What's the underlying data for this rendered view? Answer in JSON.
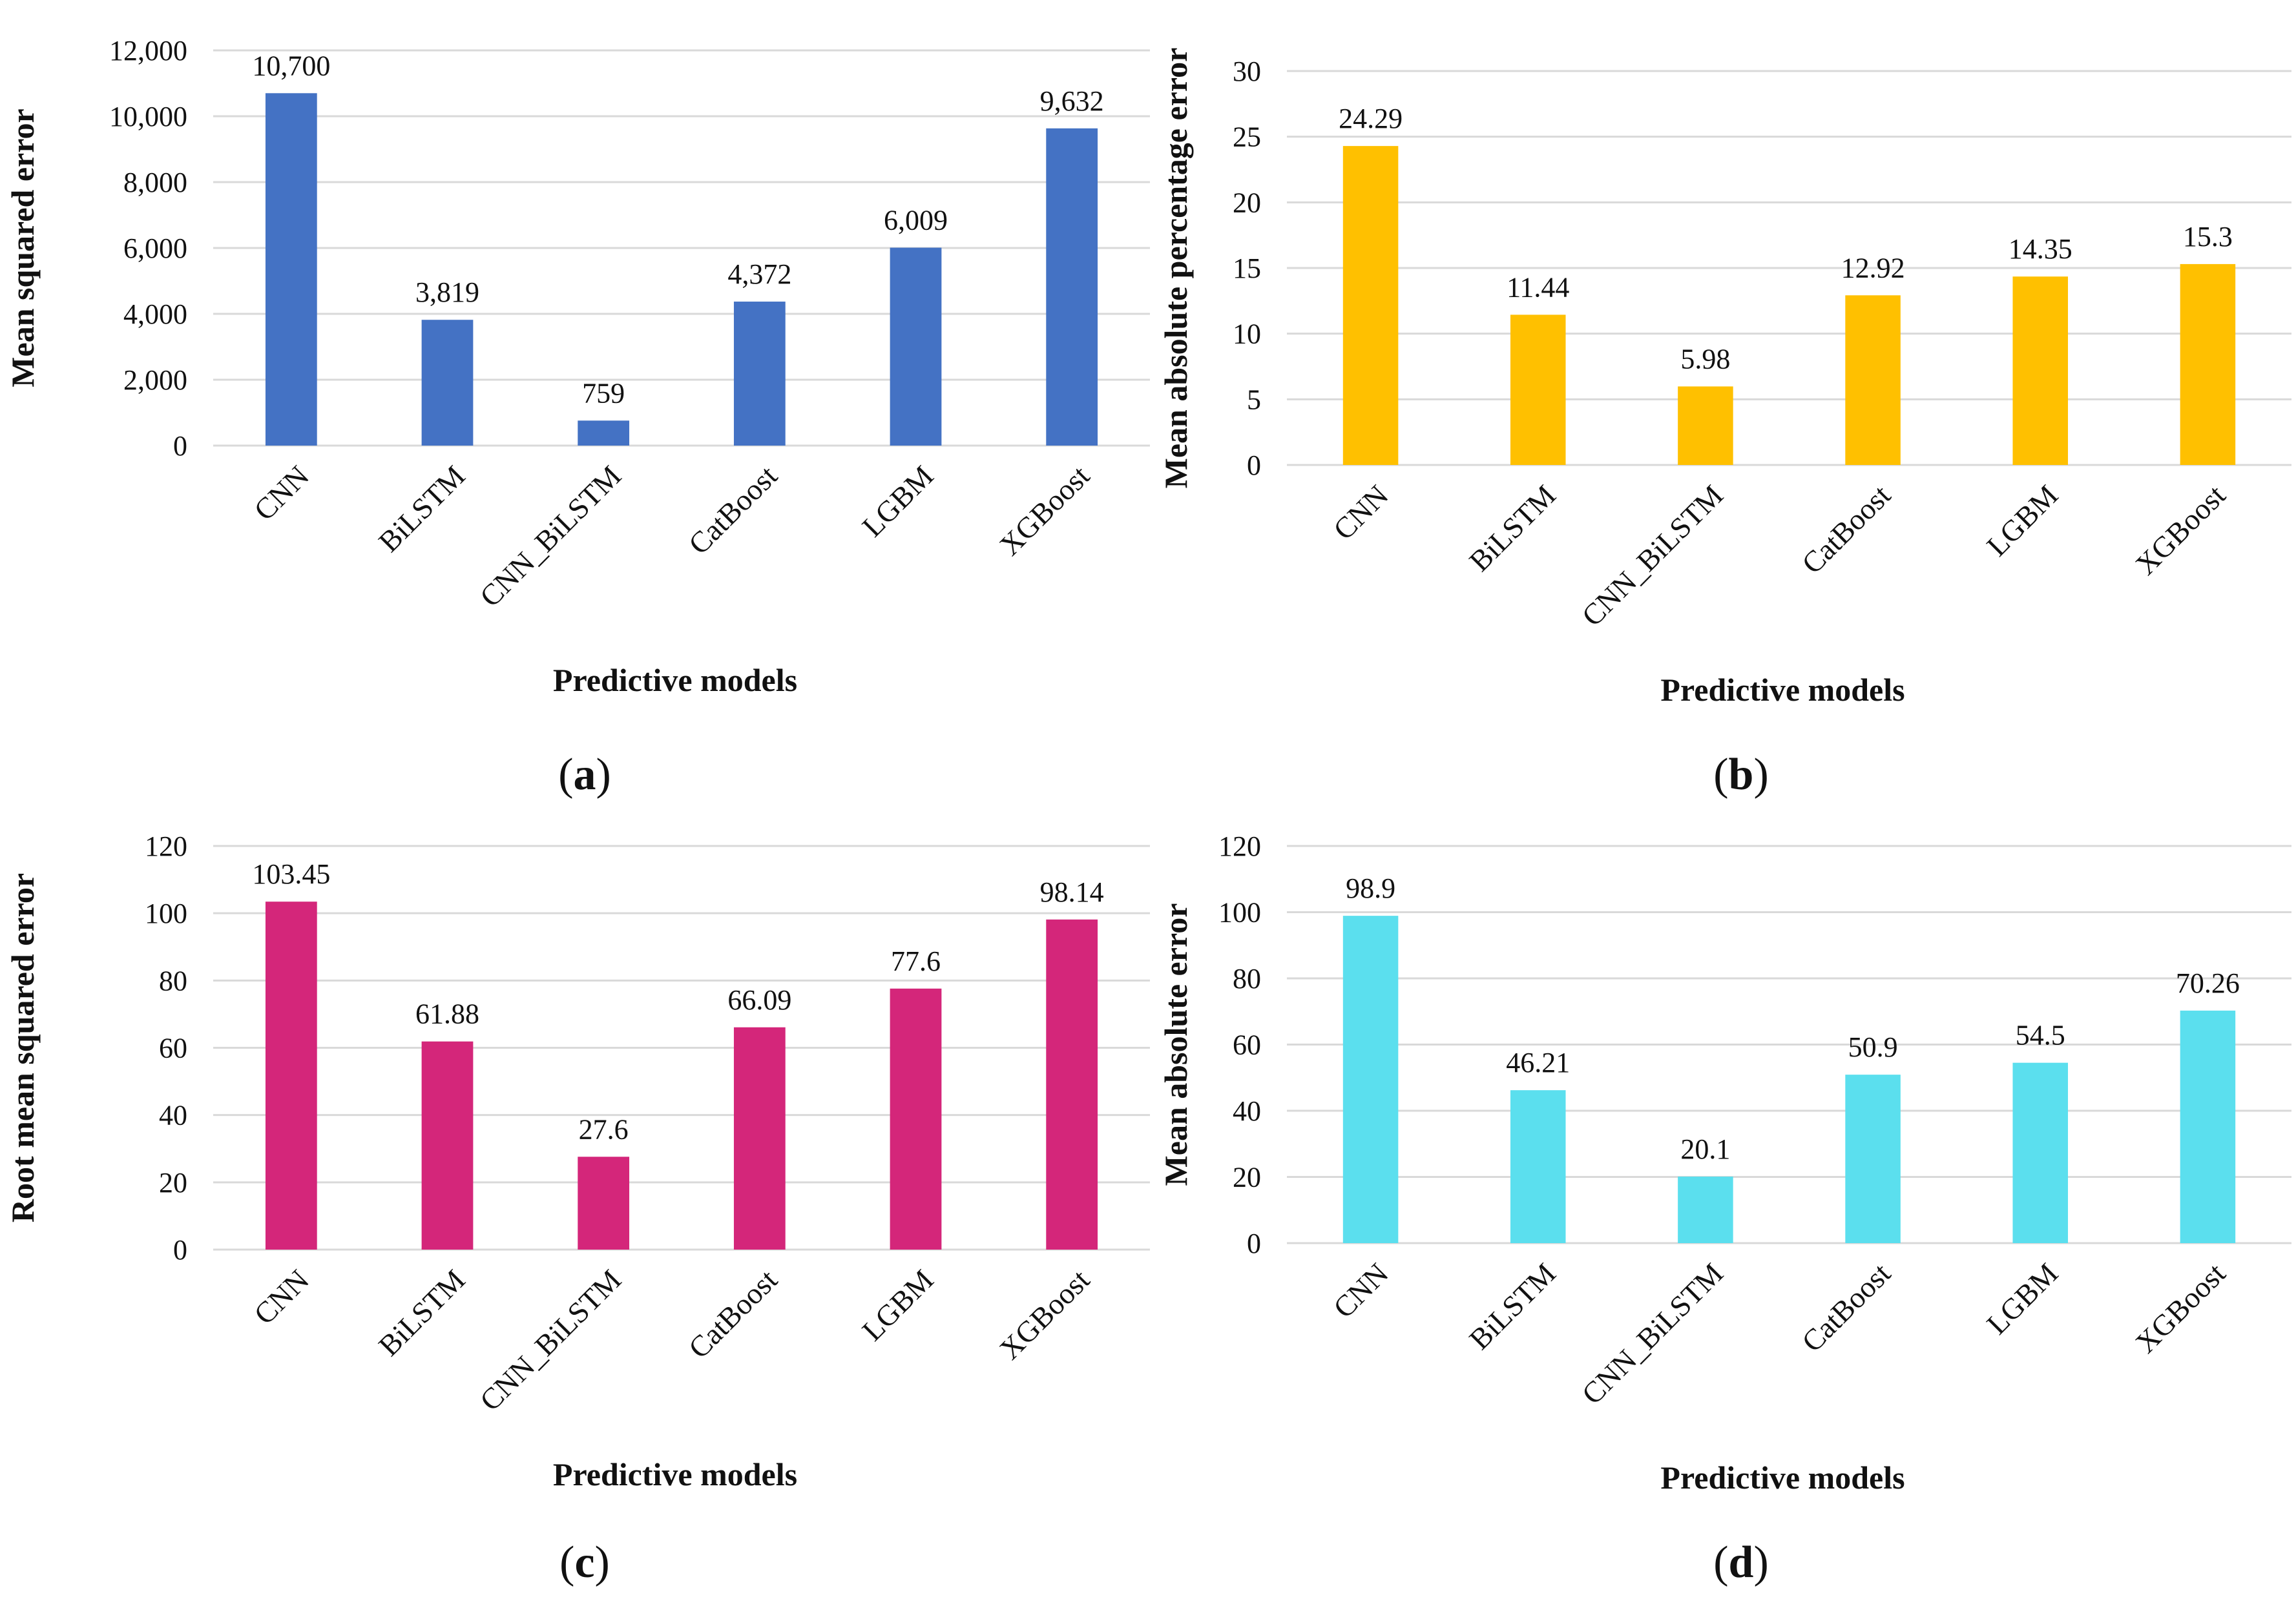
{
  "chart_data": [
    {
      "id": "a",
      "type": "bar",
      "caption_letter": "a",
      "categories": [
        "CNN",
        "BiLSTM",
        "CNN_BiLSTM",
        "CatBoost",
        "LGBM",
        "XGBoost"
      ],
      "values": [
        10700,
        3819,
        759,
        4372,
        6009,
        9632
      ],
      "value_labels": [
        "10,700",
        "3,819",
        "759",
        "4,372",
        "6,009",
        "9,632"
      ],
      "ylabel": "Mean squared error",
      "xlabel": "Predictive models",
      "ylim": [
        0,
        12000
      ],
      "yticks": [
        0,
        2000,
        4000,
        6000,
        8000,
        10000,
        12000
      ],
      "ytick_labels": [
        "0",
        "2,000",
        "4,000",
        "6,000",
        "8,000",
        "10,000",
        "12,000"
      ],
      "color": "#4472C4",
      "grid": true
    },
    {
      "id": "b",
      "type": "bar",
      "caption_letter": "b",
      "categories": [
        "CNN",
        "BiLSTM",
        "CNN_BiLSTM",
        "CatBoost",
        "LGBM",
        "XGBoost"
      ],
      "values": [
        24.29,
        11.44,
        5.98,
        12.92,
        14.35,
        15.3
      ],
      "value_labels": [
        "24.29",
        "11.44",
        "5.98",
        "12.92",
        "14.35",
        "15.3"
      ],
      "ylabel": "Mean absolute percentage error",
      "xlabel": "Predictive models",
      "ylim": [
        0,
        30
      ],
      "yticks": [
        0,
        5,
        10,
        15,
        20,
        25,
        30
      ],
      "ytick_labels": [
        "0",
        "5",
        "10",
        "15",
        "20",
        "25",
        "30"
      ],
      "color": "#FFC000",
      "grid": true
    },
    {
      "id": "c",
      "type": "bar",
      "caption_letter": "c",
      "categories": [
        "CNN",
        "BiLSTM",
        "CNN_BiLSTM",
        "CatBoost",
        "LGBM",
        "XGBoost"
      ],
      "values": [
        103.45,
        61.88,
        27.6,
        66.09,
        77.6,
        98.14
      ],
      "value_labels": [
        "103.45",
        "61.88",
        "27.6",
        "66.09",
        "77.6",
        "98.14"
      ],
      "ylabel": "Root mean squared error",
      "xlabel": "Predictive models",
      "ylim": [
        0,
        120
      ],
      "yticks": [
        0,
        20,
        40,
        60,
        80,
        100,
        120
      ],
      "ytick_labels": [
        "0",
        "20",
        "40",
        "60",
        "80",
        "100",
        "120"
      ],
      "color": "#D4267A",
      "grid": true
    },
    {
      "id": "d",
      "type": "bar",
      "caption_letter": "d",
      "categories": [
        "CNN",
        "BiLSTM",
        "CNN_BiLSTM",
        "CatBoost",
        "LGBM",
        "XGBoost"
      ],
      "values": [
        98.9,
        46.21,
        20.1,
        50.9,
        54.5,
        70.26
      ],
      "value_labels": [
        "98.9",
        "46.21",
        "20.1",
        "50.9",
        "54.5",
        "70.26"
      ],
      "ylabel": "Mean absolute error",
      "xlabel": "Predictive models",
      "ylim": [
        0,
        120
      ],
      "yticks": [
        0,
        20,
        40,
        60,
        80,
        100,
        120
      ],
      "ytick_labels": [
        "0",
        "20",
        "40",
        "60",
        "80",
        "100",
        "120"
      ],
      "color": "#5BDFEE",
      "grid": true
    }
  ]
}
